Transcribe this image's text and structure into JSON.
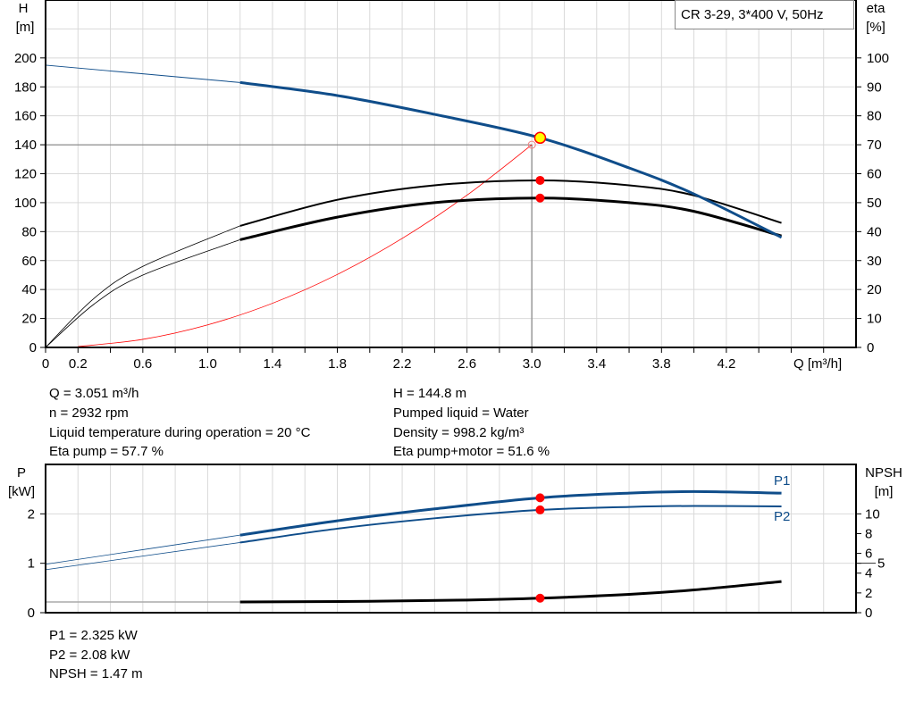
{
  "chart_data": [
    {
      "type": "line",
      "title": "CR 3-29, 3*400 V, 50Hz",
      "xlabel": "Q [m³/h]",
      "ylabel_left_lines": [
        "H",
        "[m]"
      ],
      "ylabel_right_lines": [
        "eta",
        "[%]"
      ],
      "xlim": [
        0,
        5.0
      ],
      "ylim_left": [
        0,
        240
      ],
      "ylim_right": [
        0,
        120
      ],
      "grid": true,
      "x_ticks": [
        "0",
        "0.2",
        "0.6",
        "1.0",
        "1.4",
        "1.8",
        "2.2",
        "2.6",
        "3.0",
        "3.4",
        "3.8",
        "4.2"
      ],
      "y_ticks_left": [
        "0",
        "20",
        "40",
        "60",
        "80",
        "100",
        "120",
        "140",
        "160",
        "180",
        "200"
      ],
      "y_ticks_right": [
        "0",
        "10",
        "20",
        "30",
        "40",
        "50",
        "60",
        "70",
        "80",
        "90",
        "100"
      ],
      "series": [
        {
          "axis": "left",
          "color": "#0f4d8a",
          "x": [
            0,
            0.6,
            1.2,
            1.8,
            2.4,
            3.051,
            3.6,
            4.0,
            4.54
          ],
          "y": [
            195,
            189,
            183,
            174,
            161,
            144.8,
            124,
            106,
            76
          ]
        },
        {
          "axis": "right",
          "color": "#000000",
          "x": [
            0,
            0.3,
            0.6,
            1.2,
            1.8,
            2.4,
            3.051,
            3.6,
            4.0,
            4.54
          ],
          "y": [
            0,
            17,
            28,
            42,
            51,
            56,
            57.7,
            56,
            52.5,
            43
          ]
        },
        {
          "axis": "right",
          "color": "#000000",
          "x": [
            0,
            0.3,
            0.6,
            1.2,
            1.8,
            2.4,
            3.051,
            3.6,
            4.0,
            4.54
          ],
          "y": [
            0,
            15,
            25,
            37.2,
            45,
            50,
            51.6,
            50,
            47,
            38.5
          ]
        },
        {
          "axis": "left",
          "color": "#ff0000",
          "x": [
            0.2,
            0.6,
            1.0,
            1.4,
            1.8,
            2.2,
            2.6,
            3.0
          ],
          "y": [
            0.6,
            5.6,
            15.6,
            30.5,
            50.4,
            75.3,
            105.2,
            140
          ]
        }
      ],
      "operating_point": {
        "Q": 3.051,
        "H": 144.8,
        "eta_pump": 57.7,
        "eta_total": 51.6
      },
      "system_point": {
        "Q": 3.0,
        "H": 140
      }
    },
    {
      "type": "line",
      "xlim": [
        0,
        5.0
      ],
      "ylim_left": [
        0,
        3
      ],
      "ylim_right": [
        0,
        15
      ],
      "ylabel_left_lines": [
        "P",
        "[kW]"
      ],
      "ylabel_right_lines": [
        "NPSH",
        "[m]"
      ],
      "grid": true,
      "y_ticks_left": [
        "0",
        "1",
        "2"
      ],
      "y_ticks_right": [
        "0",
        "2",
        "4",
        "5",
        "6",
        "8",
        "10"
      ],
      "series": [
        {
          "name": "P1",
          "axis": "left",
          "color": "#0f4d8a",
          "x": [
            0,
            1.2,
            1.8,
            2.4,
            3.051,
            3.6,
            4.0,
            4.54
          ],
          "y": [
            0.98,
            1.57,
            1.86,
            2.1,
            2.325,
            2.42,
            2.45,
            2.42
          ]
        },
        {
          "name": "P2",
          "axis": "left",
          "color": "#0f4d8a",
          "x": [
            0,
            1.2,
            1.8,
            2.4,
            3.051,
            3.6,
            4.0,
            4.54
          ],
          "y": [
            0.87,
            1.42,
            1.7,
            1.91,
            2.08,
            2.14,
            2.16,
            2.15
          ]
        },
        {
          "axis": "right",
          "color": "#000000",
          "x": [
            0,
            1.2,
            2.0,
            2.6,
            3.051,
            3.6,
            4.0,
            4.54
          ],
          "y": [
            1.08,
            1.08,
            1.15,
            1.28,
            1.47,
            1.85,
            2.3,
            3.15
          ]
        }
      ],
      "operating_point": {
        "Q": 3.051,
        "P1": 2.325,
        "P2": 2.08,
        "NPSH": 1.47
      }
    }
  ],
  "info_left": [
    "Q = 3.051 m³/h",
    "n = 2932 rpm",
    "Liquid temperature during operation = 20 °C",
    "Eta pump = 57.7 %"
  ],
  "info_right": [
    "H = 144.8 m",
    "Pumped liquid = Water",
    "Density = 998.2 kg/m³",
    "Eta pump+motor = 51.6 %"
  ],
  "info_bottom": [
    "P1 = 2.325 kW",
    "P2 = 2.08 kW",
    "NPSH = 1.47 m"
  ]
}
